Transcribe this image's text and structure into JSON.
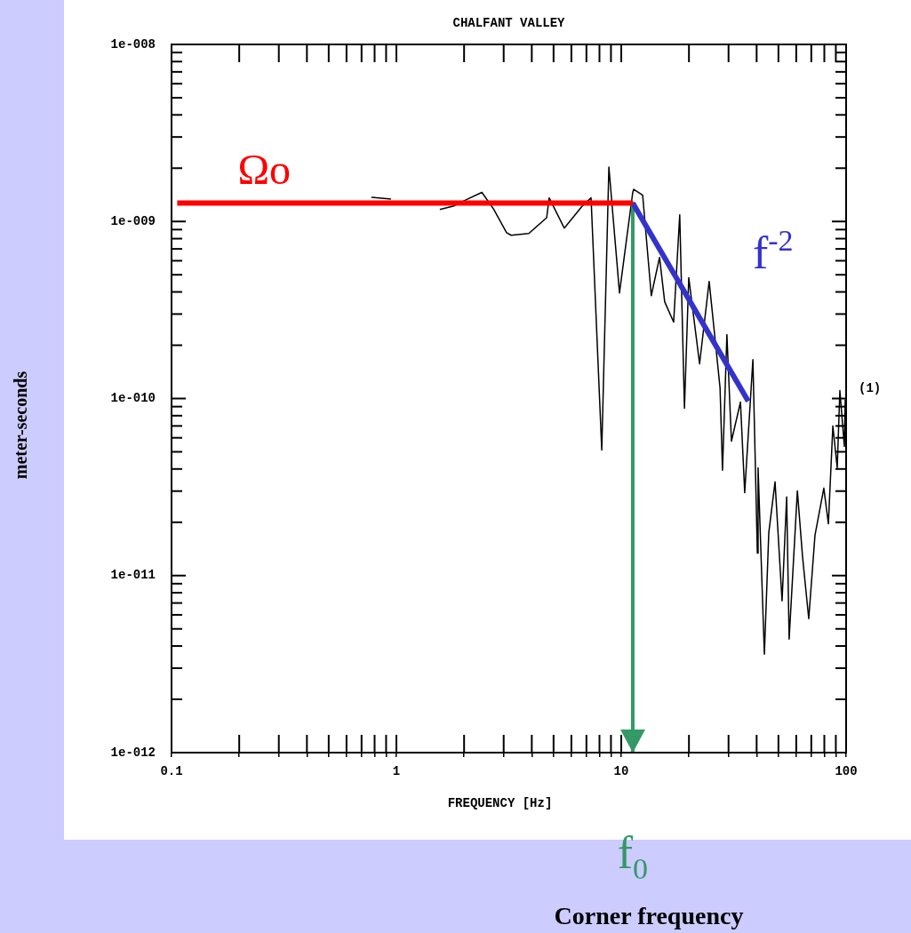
{
  "chart_data": {
    "type": "line",
    "title": "CHALFANT VALLEY",
    "xlabel": "FREQUENCY [Hz]",
    "ylabel": "meter-seconds",
    "log": "xy",
    "grid": false,
    "legend": false,
    "marker": "none",
    "xlim": [
      0.1,
      100
    ],
    "xticks": [
      0.1,
      {
        "value": 0.2,
        "label": null
      },
      {
        "value": 0.3,
        "label": null
      },
      {
        "value": 0.4,
        "label": null
      },
      {
        "value": 0.5,
        "label": null
      },
      {
        "value": 0.6,
        "label": null
      },
      {
        "value": 0.7,
        "label": null
      },
      {
        "value": 0.8,
        "label": null
      },
      {
        "value": 0.9,
        "label": null
      },
      1,
      {
        "value": 2,
        "label": null
      },
      {
        "value": 3,
        "label": null
      },
      {
        "value": 4,
        "label": null
      },
      {
        "value": 5,
        "label": null
      },
      {
        "value": 6,
        "label": null
      },
      {
        "value": 7,
        "label": null
      },
      {
        "value": 8,
        "label": null
      },
      {
        "value": 9,
        "label": null
      },
      10,
      {
        "value": 20,
        "label": null
      },
      {
        "value": 30,
        "label": null
      },
      {
        "value": 40,
        "label": null
      },
      {
        "value": 50,
        "label": null
      },
      {
        "value": 60,
        "label": null
      },
      {
        "value": 70,
        "label": null
      },
      {
        "value": 80,
        "label": null
      },
      {
        "value": 90,
        "label": null
      },
      100
    ],
    "ylim": [
      1e-12,
      1e-08
    ],
    "yticks": [
      {
        "value": 1e-12,
        "label": "1e-012"
      },
      {
        "value": 2e-12,
        "label": null
      },
      {
        "value": 3e-12,
        "label": null
      },
      {
        "value": 4e-12,
        "label": null
      },
      {
        "value": 5e-12,
        "label": null
      },
      {
        "value": 6e-12,
        "label": null
      },
      {
        "value": 7e-12,
        "label": null
      },
      {
        "value": 8e-12,
        "label": null
      },
      {
        "value": 9e-12,
        "label": null
      },
      {
        "value": 1e-11,
        "label": "1e-011"
      },
      {
        "value": 2e-11,
        "label": null
      },
      {
        "value": 3e-11,
        "label": null
      },
      {
        "value": 4e-11,
        "label": null
      },
      {
        "value": 5e-11,
        "label": null
      },
      {
        "value": 6e-11,
        "label": null
      },
      {
        "value": 7e-11,
        "label": null
      },
      {
        "value": 8e-11,
        "label": null
      },
      {
        "value": 9e-11,
        "label": null
      },
      {
        "value": 1e-10,
        "label": "1e-010"
      },
      {
        "value": 2e-10,
        "label": null
      },
      {
        "value": 3e-10,
        "label": null
      },
      {
        "value": 4e-10,
        "label": null
      },
      {
        "value": 5e-10,
        "label": null
      },
      {
        "value": 6e-10,
        "label": null
      },
      {
        "value": 7e-10,
        "label": null
      },
      {
        "value": 8e-10,
        "label": null
      },
      {
        "value": 9e-10,
        "label": null
      },
      {
        "value": 1e-09,
        "label": "1e-009"
      },
      {
        "value": 2e-09,
        "label": null
      },
      {
        "value": 3e-09,
        "label": null
      },
      {
        "value": 4e-09,
        "label": null
      },
      {
        "value": 5e-09,
        "label": null
      },
      {
        "value": 6e-09,
        "label": null
      },
      {
        "value": 7e-09,
        "label": null
      },
      {
        "value": 8e-09,
        "label": null
      },
      {
        "value": 9e-09,
        "label": null
      },
      {
        "value": 1e-08,
        "label": "1e-008"
      }
    ],
    "series": [
      {
        "color": "#000000",
        "x": [
          0.774,
          0.946,
          1.24,
          1.56,
          1.79,
          2.05,
          2.4,
          2.7,
          3.09,
          3.24,
          3.88,
          4.66,
          4.78,
          5.58,
          6.7,
          7.34,
          8.19,
          8.81,
          9.82,
          11.25,
          11.36,
          12.45,
          13.6,
          14.8,
          15.6,
          17.1,
          18.2,
          19.1,
          19.96,
          22.3,
          24.6,
          27.5,
          28.2,
          29.5,
          30.9,
          33.9,
          35.4,
          38.5,
          40.3,
          40.6,
          43.3,
          45.3,
          48.3,
          51.9,
          54.4,
          55.8,
          60.7,
          64.0,
          68.2,
          72.7,
          79.6,
          83.4,
          87.3,
          91.3,
          93.8,
          98.2,
          99.1
        ],
        "values": [
          1.37e-09,
          1.34e-09,
          null,
          1.17e-09,
          1.22e-09,
          1.33e-09,
          1.46e-09,
          1.18e-09,
          8.65e-10,
          8.36e-10,
          8.56e-10,
          1.05e-09,
          1.36e-09,
          9.17e-10,
          1.22e-09,
          1.36e-09,
          5.12e-11,
          2.03e-09,
          3.95e-10,
          1.46e-09,
          1.52e-09,
          1.41e-09,
          3.81e-10,
          6.27e-10,
          3.52e-10,
          2.7e-10,
          1.09e-09,
          8.81e-11,
          4.81e-10,
          1.57e-10,
          4.59e-10,
          1.15e-10,
          3.93e-11,
          2.3e-10,
          5.74e-11,
          9.55e-11,
          2.94e-11,
          1.66e-10,
          1.34e-11,
          4.06e-11,
          3.6e-12,
          1.75e-11,
          3.38e-11,
          7.19e-12,
          2.78e-11,
          4.38e-12,
          3.01e-11,
          1.28e-11,
          5.71e-12,
          1.69e-11,
          3.12e-11,
          1.96e-11,
          7e-11,
          4.06e-11,
          1.11e-10,
          5.36e-11,
          9.89e-11
        ]
      },
      {
        "name": "Ωo",
        "color": "#ff0000",
        "x": [
          0.106,
          11.25
        ],
        "values": [
          1.27e-09,
          1.27e-09
        ]
      },
      {
        "name": "f$^{-2}$",
        "color": "#3333cc",
        "x": [
          11.25,
          36.7
        ],
        "values": [
          1.27e-09,
          9.66e-11
        ]
      },
      {
        "name": "f$_{0}$",
        "color": "#339966",
        "x": [
          11.25,
          11.25
        ],
        "values": [
          1.27e-09,
          1e-12
        ]
      }
    ],
    "annotations": [
      "(1)",
      "Corner frequency"
    ]
  }
}
